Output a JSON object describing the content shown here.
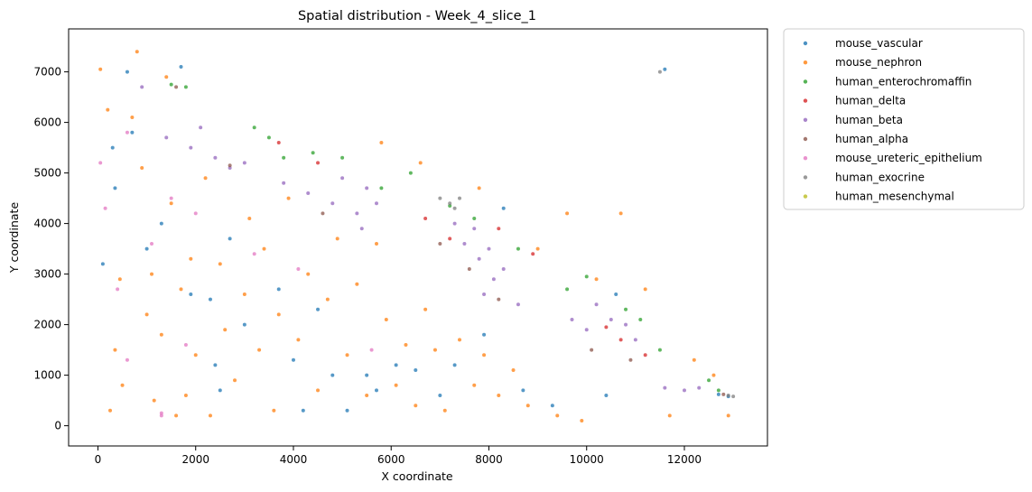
{
  "chart_data": {
    "type": "scatter",
    "title": "Spatial distribution - Week_4_slice_1",
    "xlabel": "X coordinate",
    "ylabel": "Y coordinate",
    "xlim": [
      -600,
      13700
    ],
    "ylim": [
      -400,
      7850
    ],
    "xticks": [
      0,
      2000,
      4000,
      6000,
      8000,
      10000,
      12000
    ],
    "yticks": [
      0,
      1000,
      2000,
      3000,
      4000,
      5000,
      6000,
      7000
    ],
    "grid": false,
    "legend_position": "outside-top-right",
    "series": [
      {
        "name": "mouse_vascular",
        "color": "#1f77b4",
        "points": [
          [
            100,
            3200
          ],
          [
            300,
            5500
          ],
          [
            350,
            4700
          ],
          [
            600,
            7000
          ],
          [
            700,
            5800
          ],
          [
            1000,
            3500
          ],
          [
            1300,
            4000
          ],
          [
            1700,
            7100
          ],
          [
            1900,
            2600
          ],
          [
            2300,
            2500
          ],
          [
            2400,
            1200
          ],
          [
            2500,
            700
          ],
          [
            2700,
            3700
          ],
          [
            3000,
            2000
          ],
          [
            3700,
            2700
          ],
          [
            4000,
            1300
          ],
          [
            4200,
            300
          ],
          [
            4500,
            2300
          ],
          [
            4800,
            1000
          ],
          [
            5100,
            300
          ],
          [
            5500,
            1000
          ],
          [
            5700,
            700
          ],
          [
            6100,
            1200
          ],
          [
            6500,
            1100
          ],
          [
            7000,
            600
          ],
          [
            7300,
            1200
          ],
          [
            7900,
            1800
          ],
          [
            8300,
            4300
          ],
          [
            8700,
            700
          ],
          [
            9300,
            400
          ],
          [
            10400,
            600
          ],
          [
            10600,
            2600
          ],
          [
            11600,
            7050
          ],
          [
            12700,
            620
          ],
          [
            12900,
            580
          ]
        ]
      },
      {
        "name": "mouse_nephron",
        "color": "#ff7f0e",
        "points": [
          [
            50,
            7050
          ],
          [
            200,
            6250
          ],
          [
            250,
            300
          ],
          [
            350,
            1500
          ],
          [
            450,
            2900
          ],
          [
            500,
            800
          ],
          [
            700,
            6100
          ],
          [
            800,
            7400
          ],
          [
            900,
            5100
          ],
          [
            1000,
            2200
          ],
          [
            1100,
            3000
          ],
          [
            1150,
            500
          ],
          [
            1300,
            1800
          ],
          [
            1400,
            6900
          ],
          [
            1500,
            4400
          ],
          [
            1600,
            200
          ],
          [
            1700,
            2700
          ],
          [
            1800,
            600
          ],
          [
            1900,
            3300
          ],
          [
            2000,
            1400
          ],
          [
            2200,
            4900
          ],
          [
            2300,
            200
          ],
          [
            2500,
            3200
          ],
          [
            2600,
            1900
          ],
          [
            2800,
            900
          ],
          [
            3000,
            2600
          ],
          [
            3100,
            4100
          ],
          [
            3300,
            1500
          ],
          [
            3400,
            3500
          ],
          [
            3600,
            300
          ],
          [
            3700,
            2200
          ],
          [
            3900,
            4500
          ],
          [
            4100,
            1700
          ],
          [
            4300,
            3000
          ],
          [
            4500,
            700
          ],
          [
            4700,
            2500
          ],
          [
            4900,
            3700
          ],
          [
            5100,
            1400
          ],
          [
            5300,
            2800
          ],
          [
            5500,
            600
          ],
          [
            5700,
            3600
          ],
          [
            5900,
            2100
          ],
          [
            6100,
            800
          ],
          [
            6300,
            1600
          ],
          [
            6500,
            400
          ],
          [
            6700,
            2300
          ],
          [
            6900,
            1500
          ],
          [
            7100,
            300
          ],
          [
            7400,
            1700
          ],
          [
            7700,
            800
          ],
          [
            7900,
            1400
          ],
          [
            8200,
            600
          ],
          [
            8500,
            1100
          ],
          [
            8800,
            400
          ],
          [
            9000,
            3500
          ],
          [
            9400,
            200
          ],
          [
            9600,
            4200
          ],
          [
            9900,
            100
          ],
          [
            10200,
            2900
          ],
          [
            10700,
            4200
          ],
          [
            11200,
            2700
          ],
          [
            11700,
            200
          ],
          [
            12200,
            1300
          ],
          [
            12600,
            1000
          ],
          [
            12900,
            200
          ],
          [
            5800,
            5600
          ],
          [
            6600,
            5200
          ],
          [
            7800,
            4700
          ]
        ]
      },
      {
        "name": "human_enterochromaffin",
        "color": "#2ca02c",
        "points": [
          [
            1500,
            6750
          ],
          [
            1800,
            6700
          ],
          [
            3200,
            5900
          ],
          [
            3500,
            5700
          ],
          [
            3800,
            5300
          ],
          [
            4400,
            5400
          ],
          [
            5000,
            5300
          ],
          [
            5800,
            4700
          ],
          [
            6400,
            5000
          ],
          [
            7200,
            4350
          ],
          [
            7700,
            4100
          ],
          [
            8600,
            3500
          ],
          [
            9600,
            2700
          ],
          [
            10000,
            2950
          ],
          [
            10800,
            2300
          ],
          [
            11100,
            2100
          ],
          [
            11500,
            1500
          ],
          [
            12700,
            700
          ],
          [
            12500,
            900
          ]
        ]
      },
      {
        "name": "human_delta",
        "color": "#d62728",
        "points": [
          [
            3700,
            5600
          ],
          [
            4500,
            5200
          ],
          [
            6700,
            4100
          ],
          [
            7200,
            3700
          ],
          [
            8200,
            3900
          ],
          [
            8900,
            3400
          ],
          [
            10400,
            1950
          ],
          [
            11200,
            1400
          ],
          [
            10700,
            1700
          ]
        ]
      },
      {
        "name": "human_beta",
        "color": "#9467bd",
        "points": [
          [
            900,
            6700
          ],
          [
            1400,
            5700
          ],
          [
            1900,
            5500
          ],
          [
            2100,
            5900
          ],
          [
            2400,
            5300
          ],
          [
            2700,
            5100
          ],
          [
            3000,
            5200
          ],
          [
            3800,
            4800
          ],
          [
            4300,
            4600
          ],
          [
            4800,
            4400
          ],
          [
            5000,
            4900
          ],
          [
            5300,
            4200
          ],
          [
            5500,
            4700
          ],
          [
            5700,
            4400
          ],
          [
            5400,
            3900
          ],
          [
            7300,
            4000
          ],
          [
            7500,
            3600
          ],
          [
            7700,
            3900
          ],
          [
            7800,
            3300
          ],
          [
            8000,
            3500
          ],
          [
            8100,
            2900
          ],
          [
            8300,
            3100
          ],
          [
            7900,
            2600
          ],
          [
            8600,
            2400
          ],
          [
            9700,
            2100
          ],
          [
            10000,
            1900
          ],
          [
            10200,
            2400
          ],
          [
            10500,
            2100
          ],
          [
            10800,
            2000
          ],
          [
            11000,
            1700
          ],
          [
            11600,
            750
          ],
          [
            12000,
            700
          ],
          [
            12300,
            750
          ]
        ]
      },
      {
        "name": "human_alpha",
        "color": "#8c564b",
        "points": [
          [
            1600,
            6700
          ],
          [
            2700,
            5150
          ],
          [
            4600,
            4200
          ],
          [
            7000,
            3600
          ],
          [
            7600,
            3100
          ],
          [
            8200,
            2500
          ],
          [
            10100,
            1500
          ],
          [
            10900,
            1300
          ],
          [
            12800,
            620
          ]
        ]
      },
      {
        "name": "mouse_ureteric_epithelium",
        "color": "#e377c2",
        "points": [
          [
            50,
            5200
          ],
          [
            150,
            4300
          ],
          [
            400,
            2700
          ],
          [
            600,
            1300
          ],
          [
            1100,
            3600
          ],
          [
            1300,
            200
          ],
          [
            1500,
            4500
          ],
          [
            1800,
            1600
          ],
          [
            2000,
            4200
          ],
          [
            3200,
            3400
          ],
          [
            4100,
            3100
          ],
          [
            5600,
            1500
          ],
          [
            600,
            5800
          ],
          [
            1300,
            250
          ]
        ]
      },
      {
        "name": "human_exocrine",
        "color": "#7f7f7f",
        "points": [
          [
            7000,
            4500
          ],
          [
            7200,
            4400
          ],
          [
            7400,
            4500
          ],
          [
            7300,
            4300
          ],
          [
            13000,
            580
          ],
          [
            12900,
            600
          ],
          [
            11500,
            7000
          ]
        ]
      },
      {
        "name": "human_mesenchymal",
        "color": "#bcbd22",
        "points": []
      }
    ]
  }
}
